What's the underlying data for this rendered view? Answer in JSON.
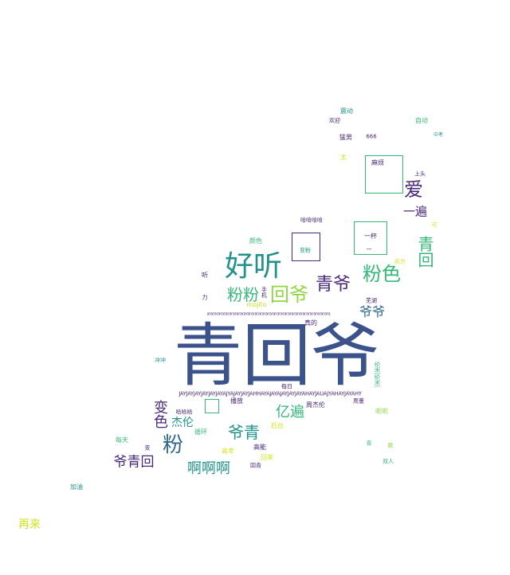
{
  "palette": {
    "navy": "#3b528b",
    "purple": "#482878",
    "teal": "#21918c",
    "green": "#35b779",
    "lime": "#90d743",
    "yellow": "#d2e21b",
    "blue": "#31688e"
  },
  "words": [
    {
      "text": "青回爷",
      "c": "navy"
    },
    {
      "text": "好听",
      "c": "teal"
    },
    {
      "text": "粉色",
      "c": "green"
    },
    {
      "text": "回爷",
      "c": "lime"
    },
    {
      "text": "青爷",
      "c": "purple"
    },
    {
      "text": "粉粉",
      "c": "green"
    },
    {
      "text": "爱",
      "c": "purple"
    },
    {
      "text": "一遍",
      "c": "purple"
    },
    {
      "text": "青回",
      "c": "green"
    },
    {
      "text": "爷爷",
      "c": "blue"
    },
    {
      "text": "粉",
      "c": "blue"
    },
    {
      "text": "变色",
      "c": "purple"
    },
    {
      "text": "爷青",
      "c": "teal"
    },
    {
      "text": "亿遍",
      "c": "green"
    },
    {
      "text": "杰伦",
      "c": "teal"
    },
    {
      "text": "爷青回",
      "c": "purple"
    },
    {
      "text": "啊啊啊",
      "c": "teal"
    },
    {
      "text": "再来",
      "c": "yellow"
    },
    {
      "text": "麻烦",
      "c": "purple"
    },
    {
      "text": "一杯",
      "c": "purple"
    },
    {
      "text": "震动",
      "c": "teal"
    },
    {
      "text": "欢迎",
      "c": "purple"
    },
    {
      "text": "猛男",
      "c": "purple"
    },
    {
      "text": "666",
      "c": "purple"
    },
    {
      "text": "自动",
      "c": "green"
    },
    {
      "text": "颜色",
      "c": "green"
    },
    {
      "text": "哈哈哈哈",
      "c": "purple"
    },
    {
      "text": "变粉",
      "c": "teal"
    },
    {
      "text": "听",
      "c": "purple"
    },
    {
      "text": "mojito",
      "c": "yellow"
    },
    {
      "text": "芜湖",
      "c": "purple"
    },
    {
      "text": "真的",
      "c": "purple"
    },
    {
      "text": "周杰伦",
      "c": "purple"
    },
    {
      "text": "播放",
      "c": "purple"
    },
    {
      "text": "哈哈哈",
      "c": "purple"
    },
    {
      "text": "循环",
      "c": "green"
    },
    {
      "text": "每天",
      "c": "green"
    },
    {
      "text": "高能",
      "c": "purple"
    },
    {
      "text": "高考",
      "c": "yellow"
    },
    {
      "text": "回来",
      "c": "yellow"
    },
    {
      "text": "回青",
      "c": "purple"
    },
    {
      "text": "加油",
      "c": "teal"
    },
    {
      "text": "后台",
      "c": "yellow"
    },
    {
      "text": "呃呃",
      "c": "lime"
    },
    {
      "text": "歌",
      "c": "lime"
    },
    {
      "text": "上头",
      "c": "purple"
    },
    {
      "text": "太",
      "c": "yellow"
    },
    {
      "text": "力",
      "c": "purple"
    },
    {
      "text": "前方",
      "c": "yellow"
    },
    {
      "text": "冲冲",
      "c": "teal"
    },
    {
      "text": "每日",
      "c": "purple"
    },
    {
      "text": "青",
      "c": "green"
    },
    {
      "text": "双人",
      "c": "green"
    },
    {
      "text": "周董",
      "c": "purple"
    },
    {
      "text": "变",
      "c": "purple"
    },
    {
      "text": "手机",
      "c": "purple"
    },
    {
      "text": "中考",
      "c": "teal"
    },
    {
      "text": "伦杰伦杰",
      "c": "green"
    },
    {
      "text": "可",
      "c": "yellow"
    },
    {
      "text": "一",
      "c": "purple"
    },
    {
      "text": "JAYJAYJAYJAYJAYJAYAJYAJAYJAYJAHHAYAJAYAJAYJAYJAYAHAYJAUAJYAHAYJAYAHY",
      "c": "purple"
    },
    {
      "text": "ararararararararararararararararararararararararararararararararara",
      "c": "purple"
    }
  ]
}
